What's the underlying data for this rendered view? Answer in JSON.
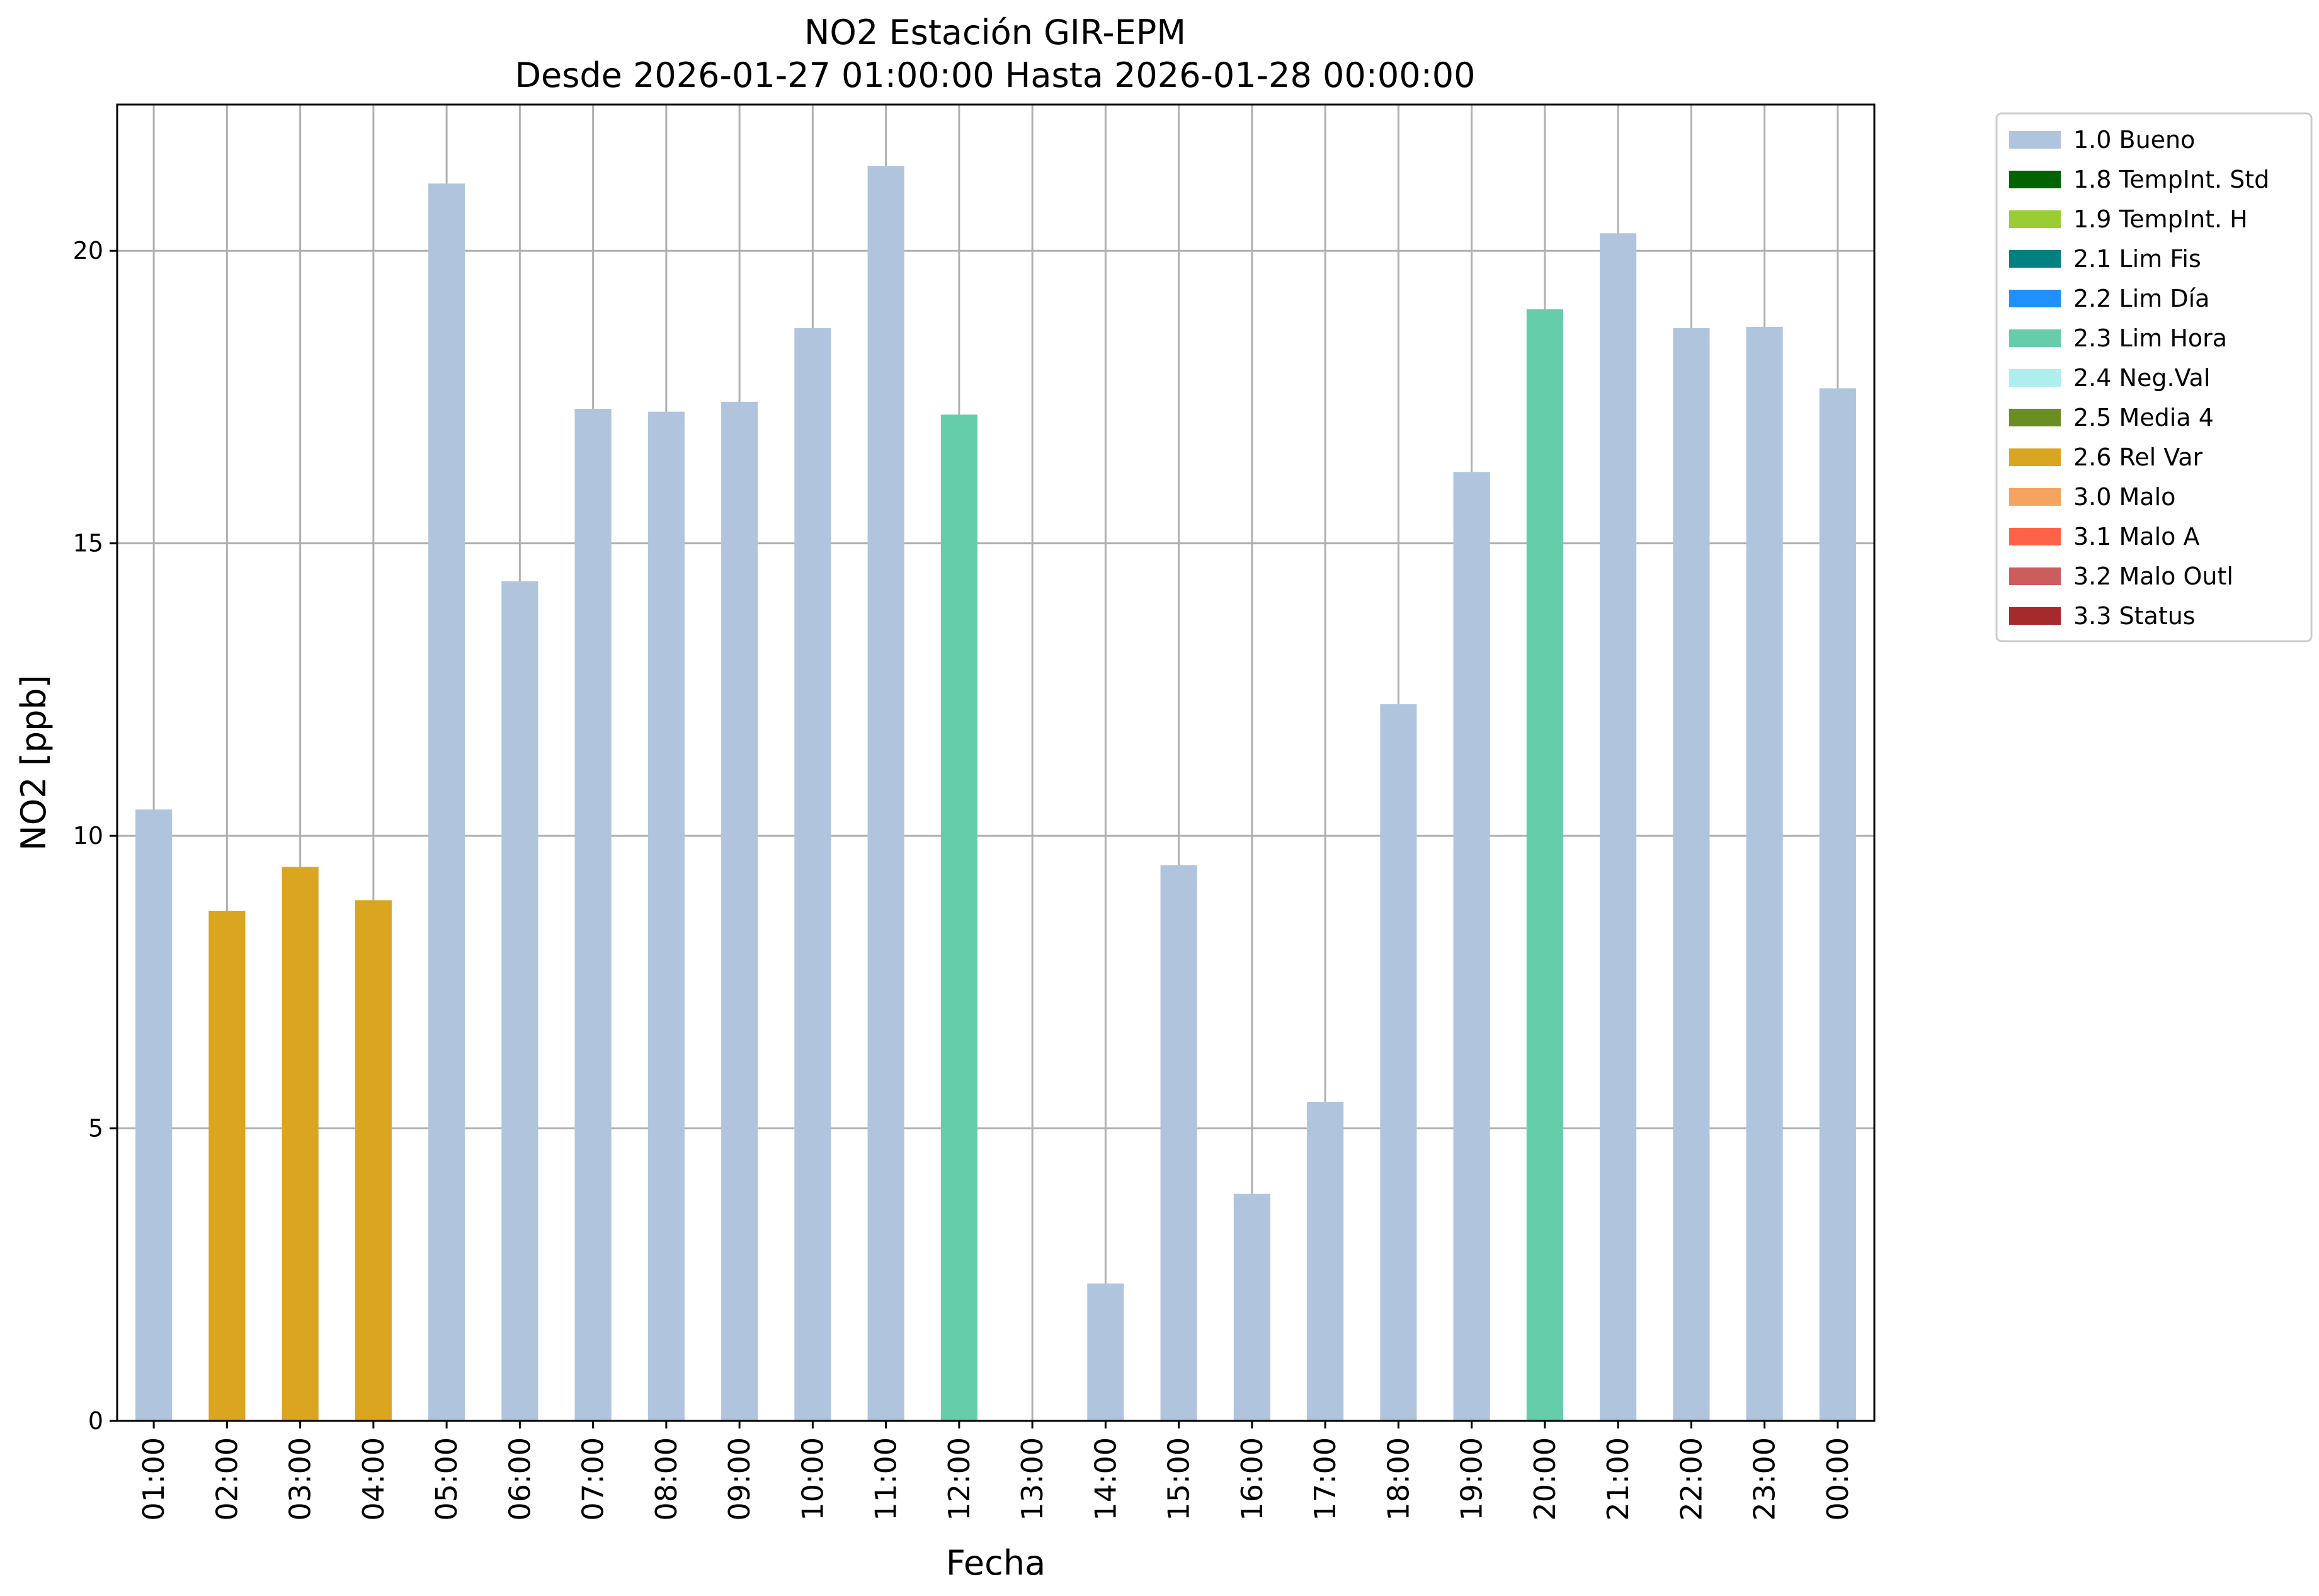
{
  "chart_data": {
    "type": "bar",
    "title": "NO2 Estación GIR-EPM",
    "subtitle": "Desde 2026-01-27 01:00:00 Hasta 2026-01-28 00:00:00",
    "xlabel": "Fecha",
    "ylabel": "NO2 [ppb]",
    "ylim": [
      0,
      22.5
    ],
    "yticks": [
      0,
      5,
      10,
      15,
      20
    ],
    "grid": true,
    "legend_position": "outside-top-right",
    "categories": [
      "01:00",
      "02:00",
      "03:00",
      "04:00",
      "05:00",
      "06:00",
      "07:00",
      "08:00",
      "09:00",
      "10:00",
      "11:00",
      "12:00",
      "13:00",
      "14:00",
      "15:00",
      "16:00",
      "17:00",
      "18:00",
      "19:00",
      "20:00",
      "21:00",
      "22:00",
      "23:00",
      "00:00"
    ],
    "values": [
      10.45,
      8.72,
      9.47,
      8.9,
      21.15,
      14.35,
      17.3,
      17.25,
      17.42,
      18.68,
      21.45,
      17.2,
      null,
      2.35,
      9.5,
      3.88,
      5.45,
      12.25,
      16.22,
      19.0,
      20.3,
      18.68,
      18.7,
      17.65
    ],
    "flags": [
      "1.0",
      "2.6",
      "2.6",
      "2.6",
      "1.0",
      "1.0",
      "1.0",
      "1.0",
      "1.0",
      "1.0",
      "1.0",
      "2.3",
      null,
      "1.0",
      "1.0",
      "1.0",
      "1.0",
      "1.0",
      "1.0",
      "2.3",
      "1.0",
      "1.0",
      "1.0",
      "1.0"
    ],
    "legend": [
      {
        "code": "1.0",
        "label": "1.0 Bueno",
        "color": "#b0c4de"
      },
      {
        "code": "1.8",
        "label": "1.8 TempInt. Std",
        "color": "#006400"
      },
      {
        "code": "1.9",
        "label": "1.9 TempInt. H",
        "color": "#9acd32"
      },
      {
        "code": "2.1",
        "label": "2.1 Lim Fis",
        "color": "#008080"
      },
      {
        "code": "2.2",
        "label": "2.2 Lim Día",
        "color": "#1e90ff"
      },
      {
        "code": "2.3",
        "label": "2.3 Lim Hora",
        "color": "#66cdaa"
      },
      {
        "code": "2.4",
        "label": "2.4 Neg.Val",
        "color": "#afeeee"
      },
      {
        "code": "2.5",
        "label": "2.5 Media 4",
        "color": "#6b8e23"
      },
      {
        "code": "2.6",
        "label": "2.6 Rel Var",
        "color": "#daa520"
      },
      {
        "code": "3.0",
        "label": "3.0 Malo",
        "color": "#f4a460"
      },
      {
        "code": "3.1",
        "label": "3.1 Malo A",
        "color": "#ff6347"
      },
      {
        "code": "3.2",
        "label": "3.2 Malo Outl",
        "color": "#cd5c5c"
      },
      {
        "code": "3.3",
        "label": "3.3 Status",
        "color": "#a52a2a"
      }
    ]
  }
}
